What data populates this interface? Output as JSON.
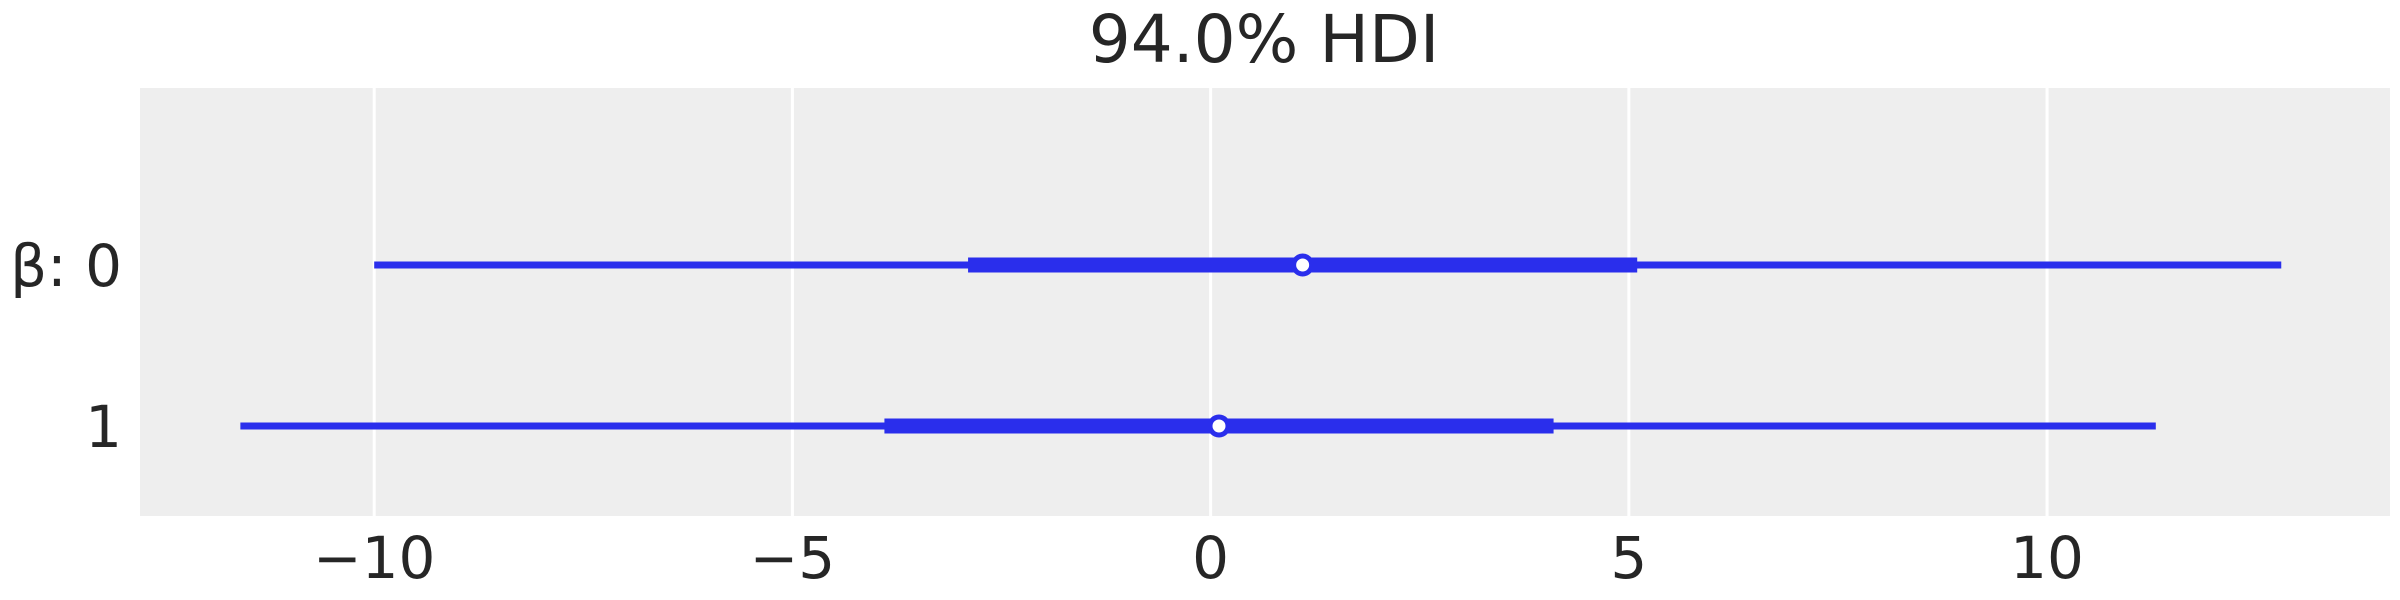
{
  "chart_data": {
    "type": "forest",
    "title": "94.0% HDI",
    "xlabel": "",
    "ylabel": "",
    "xlim": [
      -12.8,
      14.1
    ],
    "xticks": [
      -10,
      -5,
      0,
      5,
      10
    ],
    "xtick_labels": [
      "−10",
      "−5",
      "0",
      "5",
      "10"
    ],
    "grid": true,
    "color": "#2a2eec",
    "background": "#eeeeee",
    "rows": [
      {
        "label": "β: 0",
        "hdi_94": [
          -10.0,
          12.8
        ],
        "iqr": [
          -2.9,
          5.1
        ],
        "point": 1.1
      },
      {
        "label": "1",
        "hdi_94": [
          -11.6,
          11.3
        ],
        "iqr": [
          -3.9,
          4.1
        ],
        "point": 0.1
      }
    ]
  }
}
